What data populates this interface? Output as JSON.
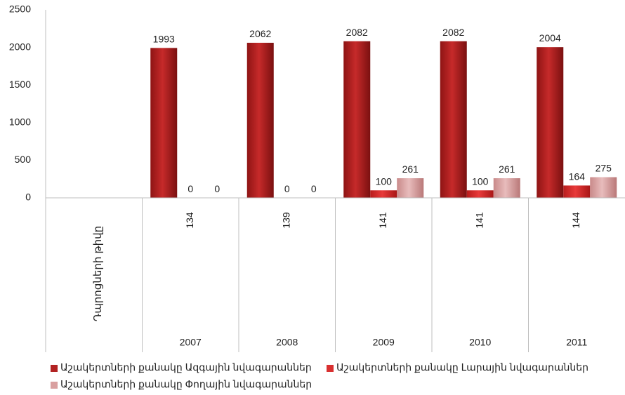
{
  "chart_data": {
    "type": "bar",
    "title": "",
    "xlabel": "",
    "ylabel": "",
    "ylim": [
      0,
      2500
    ],
    "yticks": [
      0,
      500,
      1000,
      1500,
      2000,
      2500
    ],
    "grid": false,
    "legend_position": "bottom",
    "categories": [
      "2007",
      "2008",
      "2009",
      "2010",
      "2011"
    ],
    "series": [
      {
        "name": "Աշակերտների քանակը Ազգային նվագարաններ",
        "color": "#b22222",
        "values": [
          1993,
          2062,
          2082,
          2082,
          2004
        ]
      },
      {
        "name": "Աշակերտների քանակը Լարային նվագարաններ",
        "color": "#d93030",
        "values": [
          0,
          0,
          100,
          100,
          164
        ]
      },
      {
        "name": "Աշակերտների քանակը Փողային նվագարաններ",
        "color": "#d9a0a0",
        "values": [
          0,
          0,
          261,
          261,
          275
        ]
      }
    ],
    "data_labels": [
      [
        "1993",
        "0",
        "0"
      ],
      [
        "2062",
        "0",
        "0"
      ],
      [
        "2082",
        "100",
        "261"
      ],
      [
        "2082",
        "100",
        "261"
      ],
      [
        "2004",
        "164",
        "275"
      ]
    ],
    "table": {
      "row_label": "Դպրոցների թիվը",
      "values": [
        "134",
        "139",
        "141",
        "141",
        "144"
      ]
    }
  }
}
